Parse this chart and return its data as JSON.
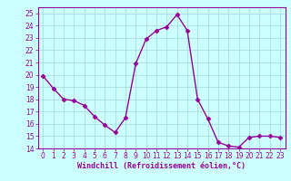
{
  "hours": [
    0,
    1,
    2,
    3,
    4,
    5,
    6,
    7,
    8,
    9,
    10,
    11,
    12,
    13,
    14,
    15,
    16,
    17,
    18,
    19,
    20,
    21,
    22,
    23
  ],
  "values": [
    19.9,
    18.9,
    18.0,
    17.9,
    17.5,
    16.6,
    15.9,
    15.3,
    16.5,
    20.9,
    22.9,
    23.6,
    23.9,
    24.9,
    23.6,
    18.0,
    16.4,
    14.5,
    14.2,
    14.1,
    14.9,
    15.0,
    15.0,
    14.9
  ],
  "line_color": "#990099",
  "marker": "D",
  "markersize": 2.5,
  "linewidth": 1.0,
  "bg_color": "#ccffff",
  "grid_color": "#aadddd",
  "xlabel": "Windchill (Refroidissement éolien,°C)",
  "xlabel_color": "#990099",
  "tick_color": "#990099",
  "spine_color": "#990099",
  "ylim": [
    14,
    25.5
  ],
  "yticks": [
    14,
    15,
    16,
    17,
    18,
    19,
    20,
    21,
    22,
    23,
    24,
    25
  ],
  "xlim": [
    -0.5,
    23.5
  ],
  "xticks": [
    0,
    1,
    2,
    3,
    4,
    5,
    6,
    7,
    8,
    9,
    10,
    11,
    12,
    13,
    14,
    15,
    16,
    17,
    18,
    19,
    20,
    21,
    22,
    23
  ],
  "tick_fontsize": 5.5,
  "xlabel_fontsize": 6.0
}
